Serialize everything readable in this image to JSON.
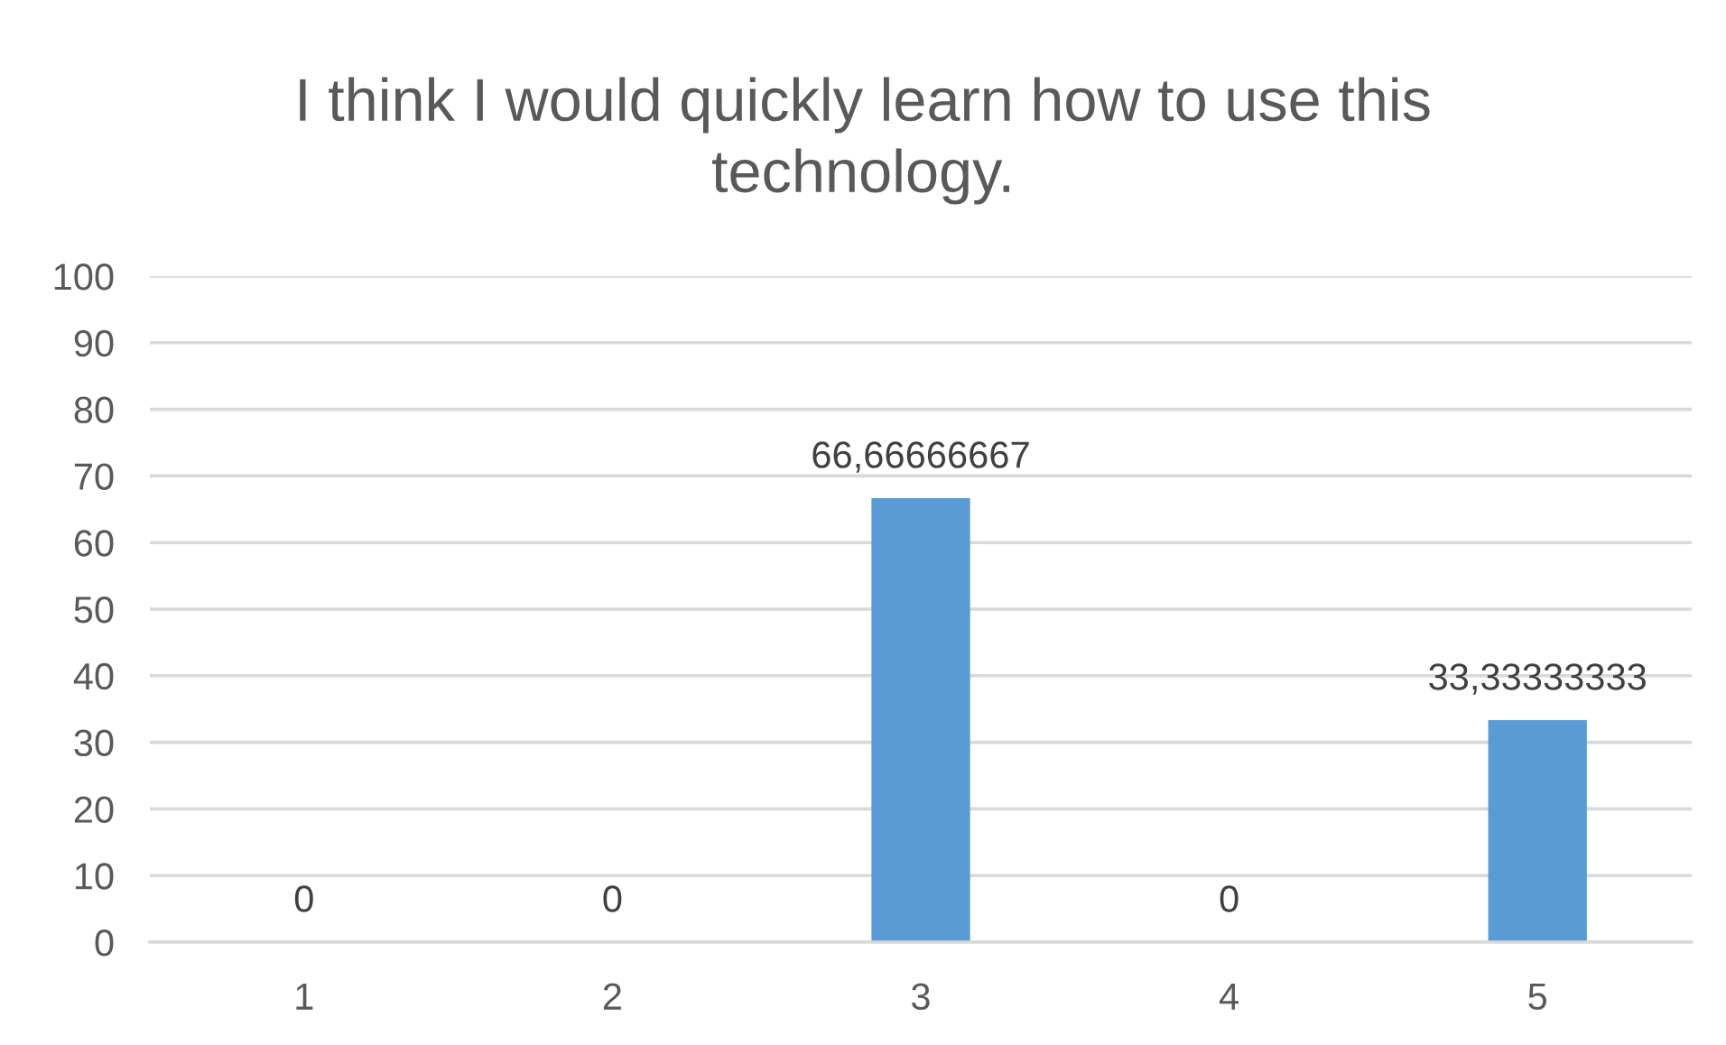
{
  "chart_data": {
    "type": "bar",
    "title": "I think I would quickly learn how to use this technology.",
    "categories": [
      "1",
      "2",
      "3",
      "4",
      "5"
    ],
    "values": [
      0,
      0,
      66.66666667,
      0,
      33.33333333
    ],
    "color": "#5b9bd5",
    "value_labels": [
      "0",
      "0",
      "66,66666667",
      "0",
      "33,33333333"
    ],
    "ylim": [
      0,
      100
    ],
    "yticks": [
      0,
      10,
      20,
      30,
      40,
      50,
      60,
      70,
      80,
      90,
      100
    ],
    "grid": "y"
  }
}
